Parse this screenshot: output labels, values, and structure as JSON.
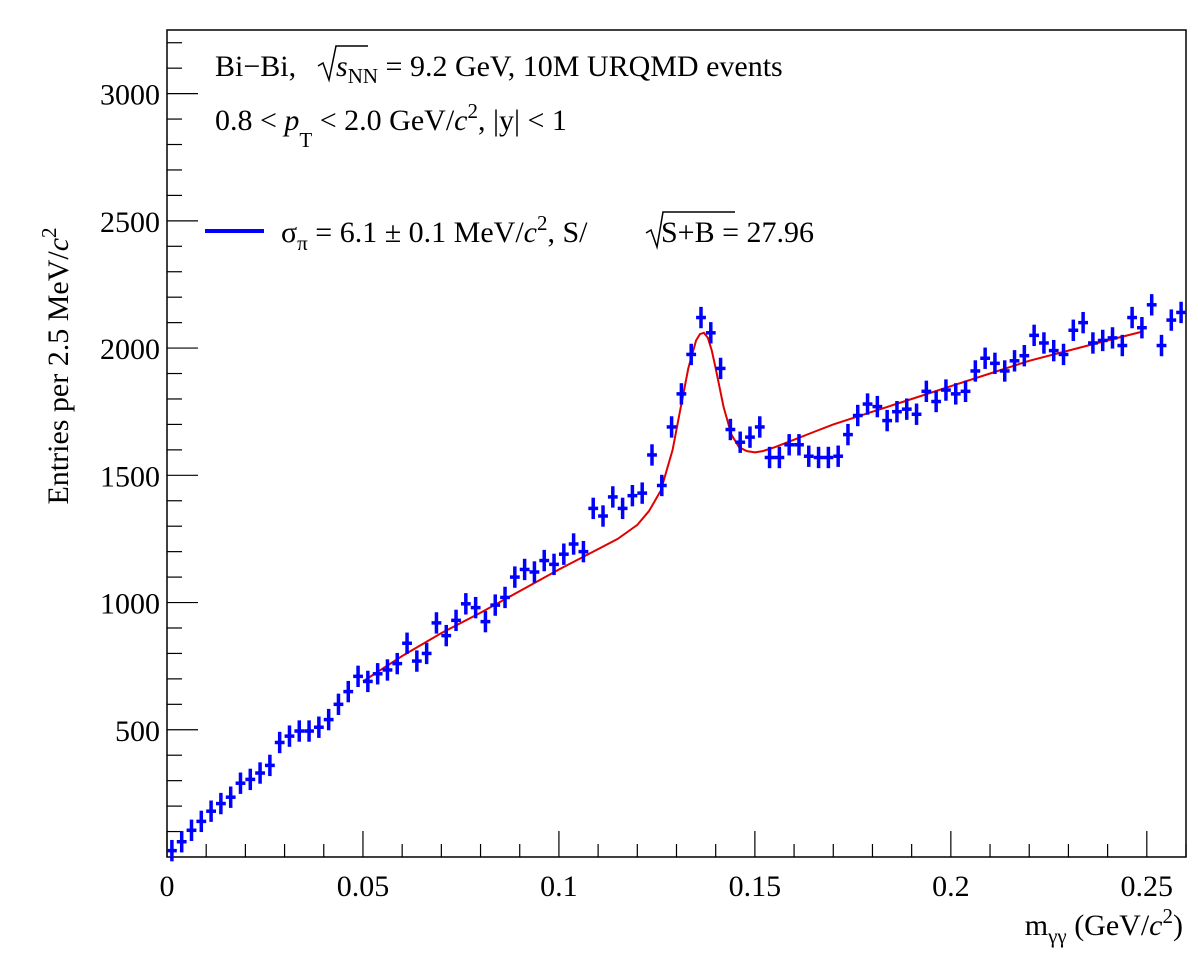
{
  "chart_data": {
    "type": "scatter",
    "xlabel": "m_γγ (GeV/c²)",
    "ylabel": "Entries per 2.5 MeV/c²",
    "xlim": [
      0,
      0.26
    ],
    "ylim": [
      0,
      3250
    ],
    "x_ticks": [
      "0",
      "0.05",
      "0.1",
      "0.15",
      "0.2",
      "0.25"
    ],
    "y_ticks": [
      "500",
      "1000",
      "1500",
      "2000",
      "2500",
      "3000"
    ],
    "grid": false,
    "legend": "top-left",
    "annotations": [
      {
        "prefix": "Bi−Bi,",
        "sqrt": "s",
        "sub": "NN",
        "suffix": " = 9.2 GeV, 10M URQMD events"
      },
      {
        "text1": "0.8 < ",
        "p": "p",
        "psub": "T",
        "text2": " < 2.0 GeV/",
        "c": "c",
        "sup": "2",
        "text3": ", |y| < 1"
      }
    ],
    "series": [
      {
        "name": "σπ = 6.1 ± 0.1 MeV/c², S/√S+B = 27.96",
        "legend_parts": {
          "sigma": "σ",
          "pi": "π",
          "a": " = 6.1 ± 0.1 MeV/",
          "c": "c",
          "sup": "2",
          "b": ", S/",
          "rad": "S+B",
          "d": " = 27.96"
        },
        "color": "#0000ff",
        "marker": "cross-errorbar",
        "x": [
          0.00125,
          0.00375,
          0.00625,
          0.00875,
          0.01125,
          0.01375,
          0.01625,
          0.01875,
          0.02125,
          0.02375,
          0.02625,
          0.02875,
          0.03125,
          0.03375,
          0.03625,
          0.03875,
          0.04125,
          0.04375,
          0.04625,
          0.04875,
          0.05125,
          0.05375,
          0.05625,
          0.05875,
          0.06125,
          0.06375,
          0.06625,
          0.06875,
          0.07125,
          0.07375,
          0.07625,
          0.07875,
          0.08125,
          0.08375,
          0.08625,
          0.08875,
          0.09125,
          0.09375,
          0.09625,
          0.09875,
          0.10125,
          0.10375,
          0.10625,
          0.10875,
          0.11125,
          0.11375,
          0.11625,
          0.11875,
          0.12125,
          0.12375,
          0.12625,
          0.12875,
          0.13125,
          0.13375,
          0.13625,
          0.13875,
          0.14125,
          0.14375,
          0.14625,
          0.14875,
          0.15125,
          0.15375,
          0.15625,
          0.15875,
          0.16125,
          0.16375,
          0.16625,
          0.16875,
          0.17125,
          0.17375,
          0.17625,
          0.17875,
          0.18125,
          0.18375,
          0.18625,
          0.18875,
          0.19125,
          0.19375,
          0.19625,
          0.19875,
          0.20125,
          0.20375,
          0.20625,
          0.20875,
          0.21125,
          0.21375,
          0.21625,
          0.21875,
          0.22125,
          0.22375,
          0.22625,
          0.22875,
          0.23125,
          0.23375,
          0.23625,
          0.23875,
          0.24125,
          0.24375,
          0.24625,
          0.24875,
          0.25125,
          0.25375,
          0.25625,
          0.25875
        ],
        "y": [
          25,
          60,
          105,
          140,
          180,
          210,
          235,
          290,
          305,
          330,
          360,
          450,
          475,
          495,
          495,
          510,
          540,
          600,
          650,
          710,
          690,
          720,
          735,
          760,
          840,
          770,
          800,
          920,
          870,
          930,
          995,
          980,
          925,
          990,
          1020,
          1100,
          1130,
          1120,
          1165,
          1150,
          1190,
          1230,
          1200,
          1370,
          1340,
          1415,
          1370,
          1420,
          1430,
          1580,
          1460,
          1690,
          1820,
          1975,
          2120,
          2060,
          1920,
          1680,
          1630,
          1650,
          1690,
          1570,
          1570,
          1620,
          1620,
          1575,
          1570,
          1570,
          1575,
          1660,
          1735,
          1780,
          1770,
          1715,
          1750,
          1760,
          1740,
          1830,
          1790,
          1835,
          1820,
          1830,
          1910,
          1960,
          1940,
          1910,
          1950,
          1970,
          2050,
          2020,
          1990,
          1975,
          2070,
          2100,
          2020,
          2030,
          2040,
          2010,
          2120,
          2080,
          2170,
          2010,
          2110,
          2140
        ],
        "yerr": 42,
        "xerr": 0.00125
      },
      {
        "color": "#e00000",
        "marker": "line",
        "x": [
          0.05,
          0.06,
          0.07,
          0.08,
          0.09,
          0.1,
          0.11,
          0.115,
          0.12,
          0.123,
          0.126,
          0.129,
          0.131,
          0.133,
          0.135,
          0.136,
          0.137,
          0.138,
          0.139,
          0.14,
          0.142,
          0.144,
          0.146,
          0.148,
          0.15,
          0.152,
          0.155,
          0.16,
          0.165,
          0.17,
          0.18,
          0.19,
          0.2,
          0.21,
          0.22,
          0.23,
          0.24,
          0.249
        ],
        "y": [
          690,
          790,
          880,
          960,
          1045,
          1130,
          1210,
          1250,
          1305,
          1360,
          1440,
          1600,
          1760,
          1920,
          2030,
          2055,
          2060,
          2040,
          1990,
          1920,
          1770,
          1660,
          1610,
          1595,
          1590,
          1595,
          1610,
          1640,
          1670,
          1700,
          1750,
          1800,
          1850,
          1900,
          1950,
          1990,
          2030,
          2065
        ]
      }
    ]
  }
}
